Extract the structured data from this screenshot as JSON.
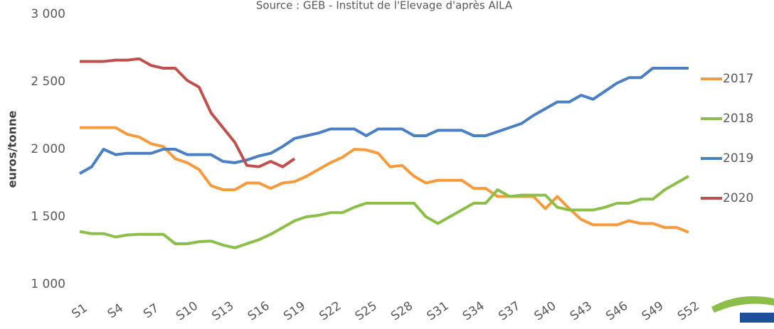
{
  "chart_data": {
    "type": "line",
    "subtitle": "Source : GEB - Institut de l'Elevage d'après AILA",
    "y_label": "euros/tonne",
    "categories": [
      "S1",
      null,
      null,
      "S4",
      null,
      null,
      "S7",
      null,
      null,
      "S10",
      null,
      null,
      "S13",
      null,
      null,
      "S16",
      null,
      null,
      "S19",
      null,
      null,
      "S22",
      null,
      null,
      "S25",
      null,
      null,
      "S28",
      null,
      null,
      "S31",
      null,
      null,
      "S34",
      null,
      null,
      "S37",
      null,
      null,
      "S40",
      null,
      null,
      "S43",
      null,
      null,
      "S46",
      null,
      null,
      "S49",
      null,
      null,
      "S52"
    ],
    "series": [
      {
        "name": "2017",
        "color": "#f79a3c",
        "values": [
          2160,
          2160,
          2160,
          2160,
          2110,
          2090,
          2040,
          2020,
          1930,
          1900,
          1850,
          1730,
          1700,
          1700,
          1750,
          1750,
          1710,
          1750,
          1760,
          1800,
          1850,
          1900,
          1940,
          2000,
          1995,
          1970,
          1870,
          1880,
          1800,
          1750,
          1770,
          1770,
          1770,
          1710,
          1710,
          1650,
          1650,
          1650,
          1650,
          1560,
          1650,
          1560,
          1480,
          1440,
          1440,
          1440,
          1470,
          1450,
          1450,
          1420,
          1420,
          1385
        ]
      },
      {
        "name": "2018",
        "color": "#8cbf4a",
        "values": [
          1390,
          1375,
          1375,
          1350,
          1365,
          1370,
          1370,
          1370,
          1300,
          1300,
          1315,
          1320,
          1290,
          1270,
          1300,
          1330,
          1370,
          1420,
          1470,
          1500,
          1510,
          1530,
          1530,
          1570,
          1600,
          1600,
          1600,
          1600,
          1600,
          1500,
          1450,
          1500,
          1550,
          1600,
          1600,
          1700,
          1650,
          1660,
          1660,
          1660,
          1570,
          1550,
          1550,
          1550,
          1570,
          1600,
          1600,
          1630,
          1630,
          1700,
          1750,
          1800
        ]
      },
      {
        "name": "2019",
        "color": "#4a7fc4",
        "values": [
          1820,
          1870,
          2000,
          1960,
          1970,
          1970,
          1970,
          2000,
          2000,
          1960,
          1960,
          1960,
          1910,
          1900,
          1920,
          1950,
          1970,
          2020,
          2080,
          2100,
          2120,
          2150,
          2150,
          2150,
          2100,
          2150,
          2150,
          2150,
          2100,
          2100,
          2140,
          2140,
          2140,
          2100,
          2100,
          2130,
          2160,
          2190,
          2250,
          2300,
          2350,
          2350,
          2400,
          2370,
          2430,
          2490,
          2530,
          2530,
          2600,
          2600,
          2600,
          2600
        ]
      },
      {
        "name": "2020",
        "color": "#c0504d",
        "values": [
          2650,
          2650,
          2650,
          2660,
          2660,
          2670,
          2620,
          2600,
          2600,
          2510,
          2460,
          2270,
          2160,
          2050,
          1880,
          1870,
          1910,
          1870,
          1930,
          null,
          null,
          null,
          null,
          null,
          null,
          null,
          null,
          null,
          null,
          null,
          null,
          null,
          null,
          null,
          null,
          null,
          null,
          null,
          null,
          null,
          null,
          null,
          null,
          null,
          null,
          null,
          null,
          null,
          null,
          null,
          null,
          null
        ]
      }
    ],
    "ylim": [
      1000,
      3000
    ],
    "yticks": [
      {
        "value": 1000,
        "label": "1 000"
      },
      {
        "value": 1500,
        "label": "1 500"
      },
      {
        "value": 2000,
        "label": "2 000"
      },
      {
        "value": 2500,
        "label": "2 500"
      },
      {
        "value": 3000,
        "label": "3 000"
      }
    ],
    "grid": false,
    "legend": "right"
  }
}
